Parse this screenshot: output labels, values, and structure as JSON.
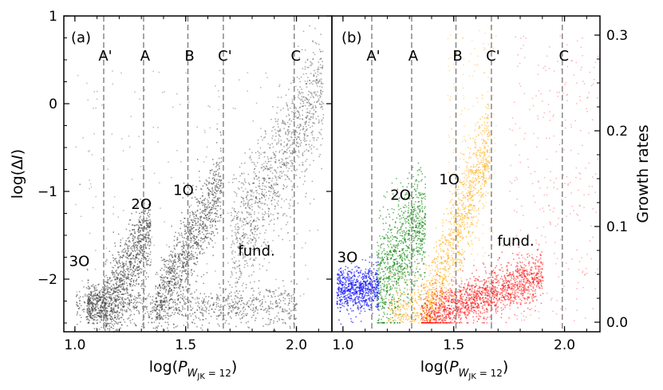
{
  "chart_data": [
    {
      "panel": "(a)",
      "type": "scatter",
      "xlabel": "log(P_{W_JK=12})",
      "ylabel": "log(ΔI)",
      "xlim": [
        0.95,
        2.16
      ],
      "ylim": [
        -2.6,
        1.0
      ],
      "xticks": [
        1.0,
        1.5,
        2.0
      ],
      "xtick_labels": [
        "1.0",
        "1.5",
        "2.0"
      ],
      "yticks": [
        1,
        0,
        -1,
        -2
      ],
      "ytick_labels": [
        "1",
        "0",
        "−1",
        "−2"
      ],
      "grid": false,
      "colors": {
        "points": "#3a3a3a"
      },
      "vlines": [
        {
          "label": "A'",
          "x": 1.13
        },
        {
          "label": "A",
          "x": 1.31
        },
        {
          "label": "B",
          "x": 1.51
        },
        {
          "label": "C'",
          "x": 1.67
        },
        {
          "label": "C",
          "x": 1.99
        }
      ],
      "annotations": [
        {
          "text": "3O",
          "x": 1.02,
          "y": -1.85
        },
        {
          "text": "2O",
          "x": 1.3,
          "y": -1.2
        },
        {
          "text": "1O",
          "x": 1.49,
          "y": -1.04
        },
        {
          "text": "fund.",
          "x": 1.82,
          "y": -1.73
        }
      ],
      "clusters": [
        {
          "name": "3O",
          "x_range": [
            1.05,
            1.13
          ],
          "y_center": -2.3
        },
        {
          "name": "2O",
          "x_range": [
            1.13,
            1.34
          ],
          "y_trend": [
            -2.3,
            -1.4
          ]
        },
        {
          "name": "1O",
          "x_range": [
            1.35,
            1.66
          ],
          "y_trend": [
            -2.3,
            -0.85
          ]
        },
        {
          "name": "fund.",
          "x_range": [
            1.7,
            2.12
          ],
          "y_trend": [
            -1.8,
            0.35
          ]
        }
      ]
    },
    {
      "panel": "(b)",
      "type": "scatter",
      "xlabel": "log(P_{W_JK=12})",
      "ylabel": "Growth rates",
      "xlim": [
        0.95,
        2.16
      ],
      "ylim": [
        -0.01,
        0.32
      ],
      "xticks": [
        1.0,
        1.5,
        2.0
      ],
      "xtick_labels": [
        "1.0",
        "1.5",
        "2.0"
      ],
      "yticks": [
        0.0,
        0.1,
        0.2,
        0.3
      ],
      "ytick_labels": [
        "0.0",
        "0.1",
        "0.2",
        "0.3"
      ],
      "grid": false,
      "vlines": [
        {
          "label": "A'",
          "x": 1.13
        },
        {
          "label": "A",
          "x": 1.31
        },
        {
          "label": "B",
          "x": 1.51
        },
        {
          "label": "C'",
          "x": 1.67
        },
        {
          "label": "C",
          "x": 1.99
        }
      ],
      "annotations": [
        {
          "text": "3O",
          "x": 1.02,
          "y": 0.063
        },
        {
          "text": "2O",
          "x": 1.26,
          "y": 0.128
        },
        {
          "text": "1O",
          "x": 1.48,
          "y": 0.144
        },
        {
          "text": "fund.",
          "x": 1.78,
          "y": 0.08
        }
      ],
      "series": [
        {
          "color": "#0000ff",
          "x_range": [
            0.97,
            1.16
          ],
          "y_range": [
            0.0,
            0.055
          ]
        },
        {
          "color": "#008000",
          "x_range": [
            1.15,
            1.38
          ],
          "y_range": [
            0.0,
            0.13
          ]
        },
        {
          "color": "#ffa500",
          "x_range": [
            1.19,
            1.69
          ],
          "y_range": [
            0.0,
            0.31
          ]
        },
        {
          "color": "#ff0000",
          "x_range": [
            1.35,
            2.14
          ],
          "y_range": [
            0.0,
            0.06
          ]
        }
      ]
    }
  ],
  "colors": {
    "vline": "#808080"
  }
}
